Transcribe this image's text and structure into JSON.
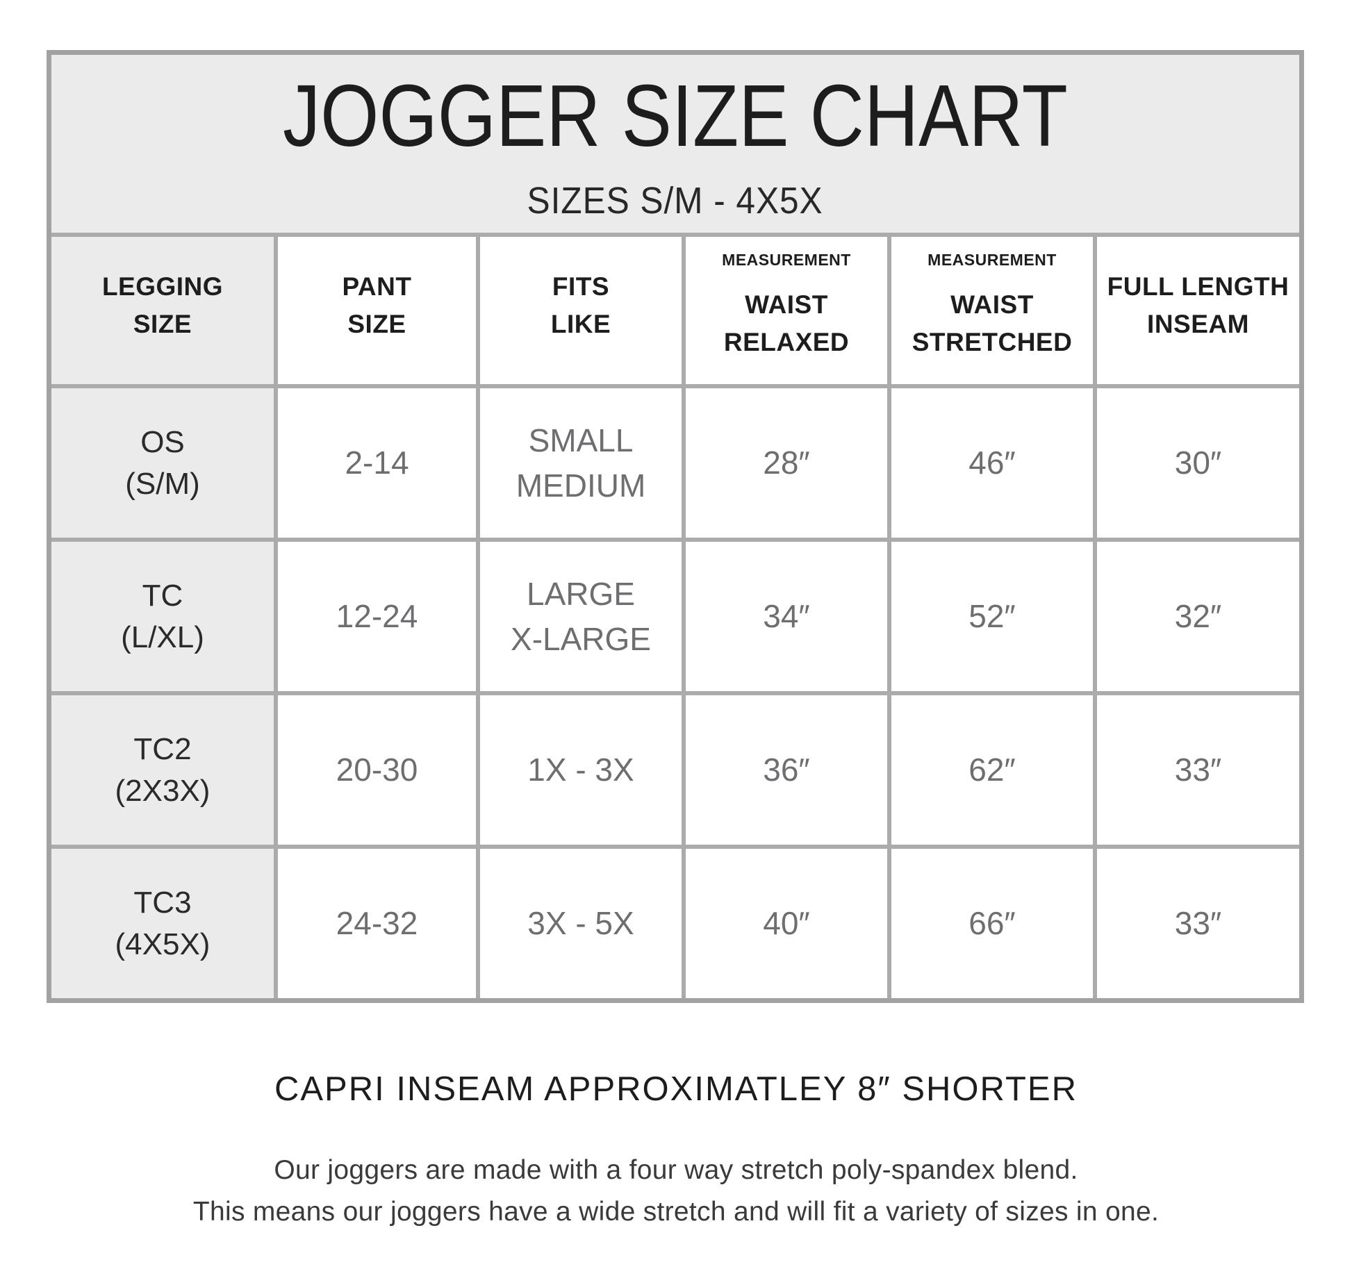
{
  "chart_data": {
    "type": "table",
    "title": "JOGGER SIZE CHART",
    "subtitle": "SIZES S/M - 4X5X",
    "columns": [
      {
        "label": "LEGGING\nSIZE"
      },
      {
        "label": "PANT\nSIZE"
      },
      {
        "label": "FITS\nLIKE"
      },
      {
        "sup": "MEASUREMENT",
        "label": "WAIST\nRELAXED"
      },
      {
        "sup": "MEASUREMENT",
        "label": "WAIST\nSTRETCHED"
      },
      {
        "label": "FULL LENGTH\nINSEAM"
      }
    ],
    "rows": [
      {
        "cells": [
          "OS\n(S/M)",
          "2-14",
          "SMALL\nMEDIUM",
          "28″",
          "46″",
          "30″"
        ]
      },
      {
        "cells": [
          "TC\n(L/XL)",
          "12-24",
          "LARGE\nX-LARGE",
          "34″",
          "52″",
          "32″"
        ]
      },
      {
        "cells": [
          "TC2\n(2X3X)",
          "20-30",
          "1X - 3X",
          "36″",
          "62″",
          "33″"
        ]
      },
      {
        "cells": [
          "TC3\n(4X5X)",
          "24-32",
          "3X - 5X",
          "40″",
          "66″",
          "33″"
        ]
      }
    ]
  },
  "footer": {
    "capri_note": "CAPRI INSEAM APPROXIMATLEY 8″ SHORTER",
    "description_line1": "Our joggers are made with a four way stretch poly-spandex blend.",
    "description_line2": "This means our joggers have a wide stretch and will fit a variety of sizes in one."
  },
  "colors": {
    "panel_gray": "#ebebeb",
    "grid_line_gray": "#ababab",
    "outer_border_gray": "#a2a2a2",
    "dark_text": "#231f20",
    "muted_text": "#6d6e71"
  }
}
